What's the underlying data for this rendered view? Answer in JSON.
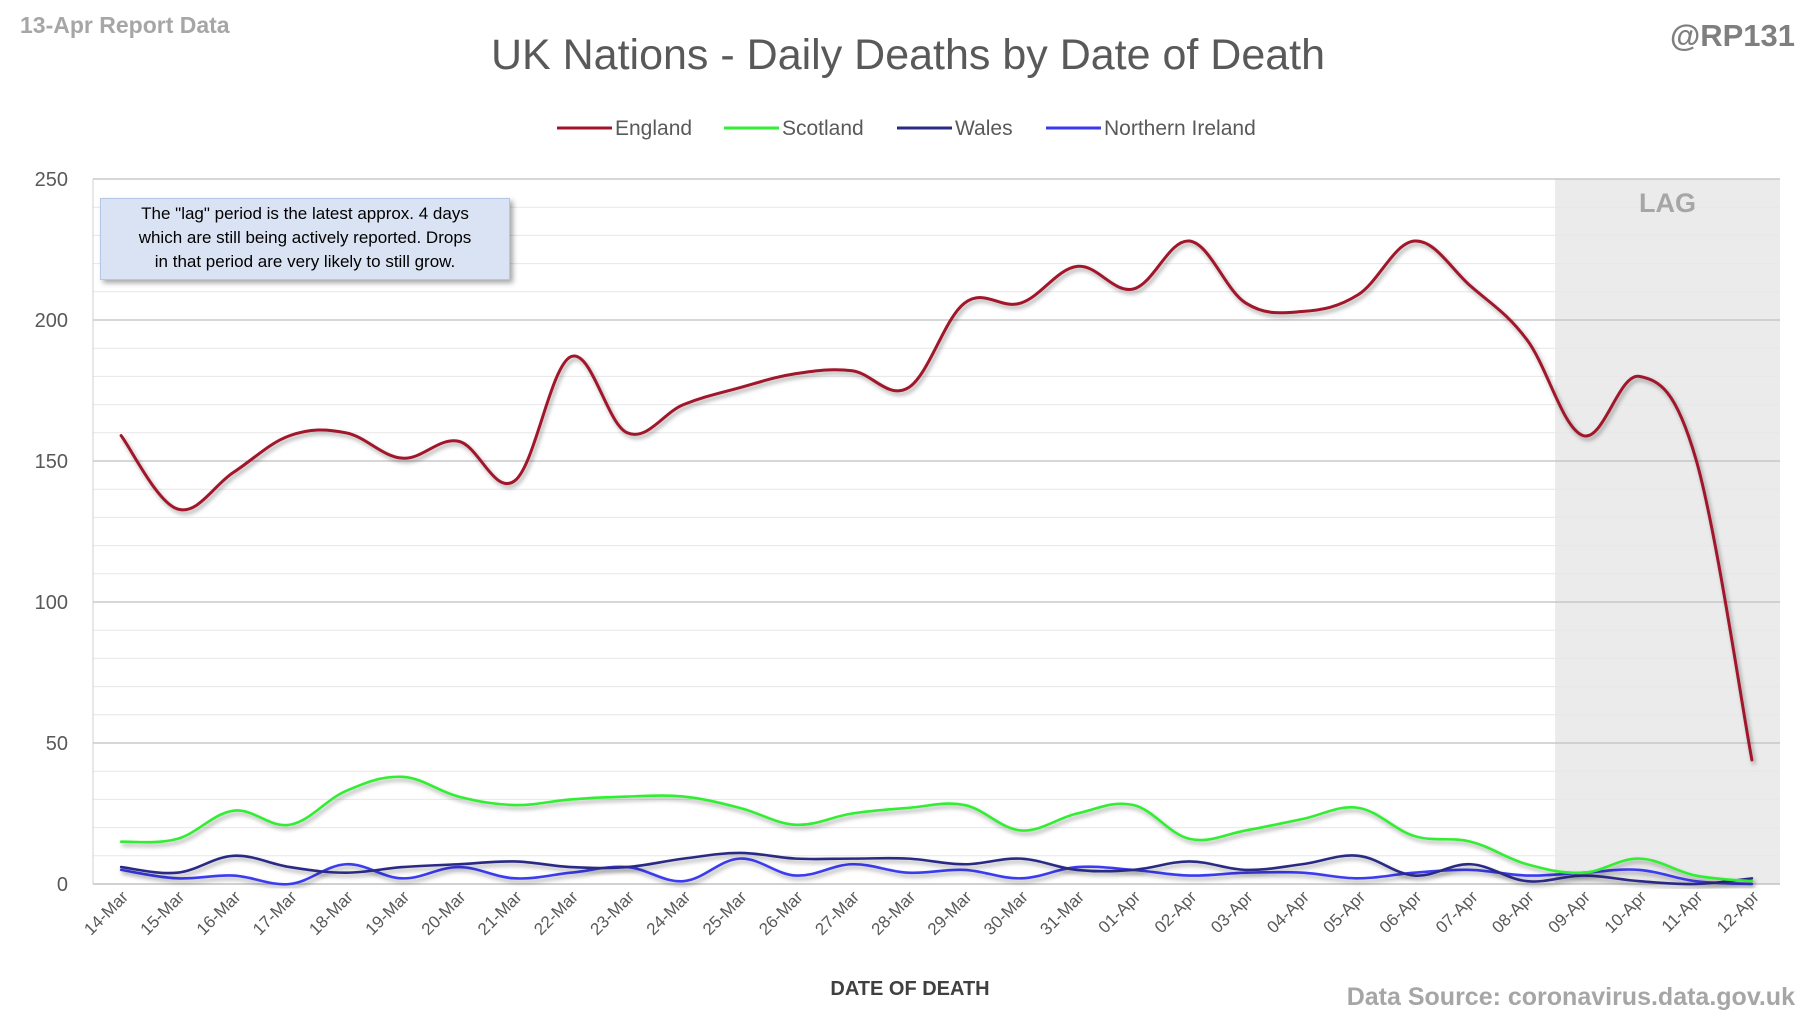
{
  "corner_label_left": "13-Apr Report Data",
  "corner_label_right": "@RP131",
  "source": "Data Source: coronavirus.data.gov.uk",
  "annotation": {
    "lines": [
      "The \"lag\" period is the latest approx. 4 days",
      "which are still being actively reported.  Drops",
      "in that period are very likely to still grow."
    ]
  },
  "lag_label": "LAG",
  "colors": {
    "england": "#a0142a",
    "scotland": "#33ee33",
    "wales": "#2b2b85",
    "northern_ireland": "#3a3af0",
    "lag_shade": "#ebebeb",
    "gridline": "#d9d9d9"
  },
  "chart_data": {
    "type": "line",
    "title": "UK Nations - Daily Deaths by Date of Death",
    "xlabel": "DATE OF DEATH",
    "ylabel": "",
    "ylim": [
      0,
      250
    ],
    "yticks": [
      0,
      50,
      100,
      150,
      200,
      250
    ],
    "grid": true,
    "legend_position": "top",
    "lag_period": [
      "09-Apr",
      "12-Apr"
    ],
    "categories": [
      "14-Mar",
      "15-Mar",
      "16-Mar",
      "17-Mar",
      "18-Mar",
      "19-Mar",
      "20-Mar",
      "21-Mar",
      "22-Mar",
      "23-Mar",
      "24-Mar",
      "25-Mar",
      "26-Mar",
      "27-Mar",
      "28-Mar",
      "29-Mar",
      "30-Mar",
      "31-Mar",
      "01-Apr",
      "02-Apr",
      "03-Apr",
      "04-Apr",
      "05-Apr",
      "06-Apr",
      "07-Apr",
      "08-Apr",
      "09-Apr",
      "10-Apr",
      "11-Apr",
      "12-Apr"
    ],
    "series": [
      {
        "name": "England",
        "values": [
          159,
          133,
          146,
          159,
          160,
          151,
          157,
          143,
          187,
          160,
          170,
          176,
          181,
          182,
          176,
          206,
          206,
          219,
          211,
          228,
          206,
          203,
          209,
          228,
          212,
          193,
          159,
          180,
          151,
          44
        ]
      },
      {
        "name": "Scotland",
        "values": [
          15,
          16,
          26,
          21,
          33,
          38,
          31,
          28,
          30,
          31,
          31,
          27,
          21,
          25,
          27,
          28,
          19,
          25,
          28,
          16,
          19,
          23,
          27,
          17,
          15,
          7,
          4,
          9,
          3,
          1
        ]
      },
      {
        "name": "Wales",
        "values": [
          6,
          4,
          10,
          6,
          4,
          6,
          7,
          8,
          6,
          6,
          9,
          11,
          9,
          9,
          9,
          7,
          9,
          5,
          5,
          8,
          5,
          7,
          10,
          3,
          7,
          1,
          3,
          1,
          0,
          2
        ]
      },
      {
        "name": "Northern Ireland",
        "values": [
          5,
          2,
          3,
          0,
          7,
          2,
          6,
          2,
          4,
          6,
          1,
          9,
          3,
          7,
          4,
          5,
          2,
          6,
          5,
          3,
          4,
          4,
          2,
          4,
          5,
          3,
          4,
          5,
          1,
          0
        ]
      }
    ]
  }
}
